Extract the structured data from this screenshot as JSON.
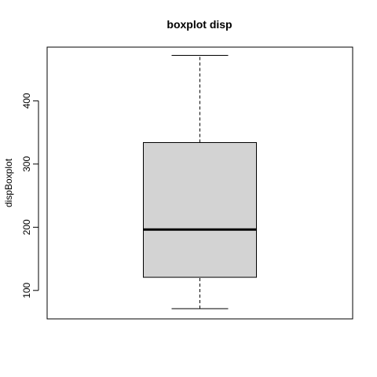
{
  "chart_data": {
    "type": "boxplot",
    "title": "boxplot disp",
    "xlabel": "",
    "ylabel": "dispBoxplot",
    "ylim": [
      55.0,
      485.0
    ],
    "yticks": [
      100,
      200,
      300,
      400
    ],
    "grid": false,
    "box": {
      "min": 71.1,
      "q1": 120.8,
      "median": 196.3,
      "q3": 334,
      "max": 472,
      "fill": "#d3d3d3"
    }
  }
}
